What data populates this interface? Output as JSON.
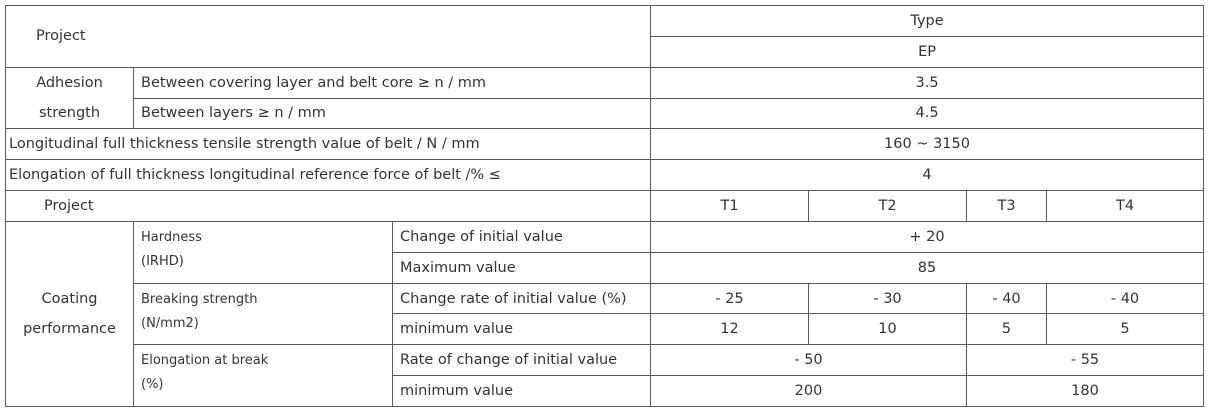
{
  "table": {
    "rows": [
      [
        "Project",
        "Type"
      ],
      [
        "EP"
      ],
      [
        "Adhesion strength",
        "Between covering layer and belt core ≥ n / mm",
        "3.5"
      ],
      [
        "Between layers ≥ n / mm",
        "4.5"
      ],
      [
        "Longitudinal full thickness tensile strength value of belt / N / mm",
        "160 ~ 3150"
      ],
      [
        "Elongation of full thickness longitudinal reference force of belt /% ≤",
        "4"
      ],
      [
        "Project",
        "T1",
        "T2",
        "T3",
        "T4"
      ],
      [
        "Coating performance",
        "Hardness",
        "(IRHD)",
        "Change of initial value",
        "+ 20"
      ],
      [
        "Maximum value",
        "85"
      ],
      [
        "Breaking strength",
        "(N/mm2)",
        "Change rate of initial value (%)",
        "- 25",
        "- 30",
        "- 40",
        "- 40"
      ],
      [
        "minimum value",
        "12",
        "10",
        "5",
        "5"
      ],
      [
        "Elongation at break",
        "(%)",
        "Rate of change of initial value",
        "- 50",
        "- 55"
      ],
      [
        "minimum value",
        "200",
        "180"
      ]
    ]
  }
}
